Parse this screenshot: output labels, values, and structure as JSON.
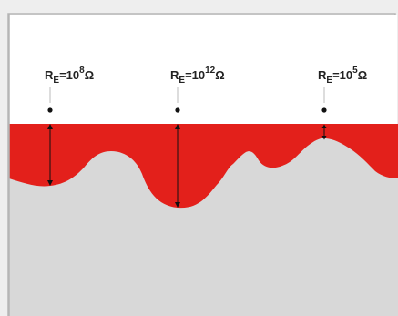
{
  "colors": {
    "page_background": "#eeeeee",
    "frame_border": "#b5b5b5",
    "air": "#ffffff",
    "surface_layer": "#e3201b",
    "substrate": "#d8d8d8",
    "lead_line": "#bbbbbb",
    "probe_dot": "#111111",
    "arrow": "#111111"
  },
  "probes": [
    {
      "label_base": "R",
      "label_sub": "E",
      "label_mid": "=10",
      "label_exp": "8",
      "label_unit": "Ω",
      "resistance_exponent": 8
    },
    {
      "label_base": "R",
      "label_sub": "E",
      "label_mid": "=10",
      "label_exp": "12",
      "label_unit": "Ω",
      "resistance_exponent": 12
    },
    {
      "label_base": "R",
      "label_sub": "E",
      "label_mid": "=10",
      "label_exp": "5",
      "label_unit": "Ω",
      "resistance_exponent": 5
    }
  ]
}
